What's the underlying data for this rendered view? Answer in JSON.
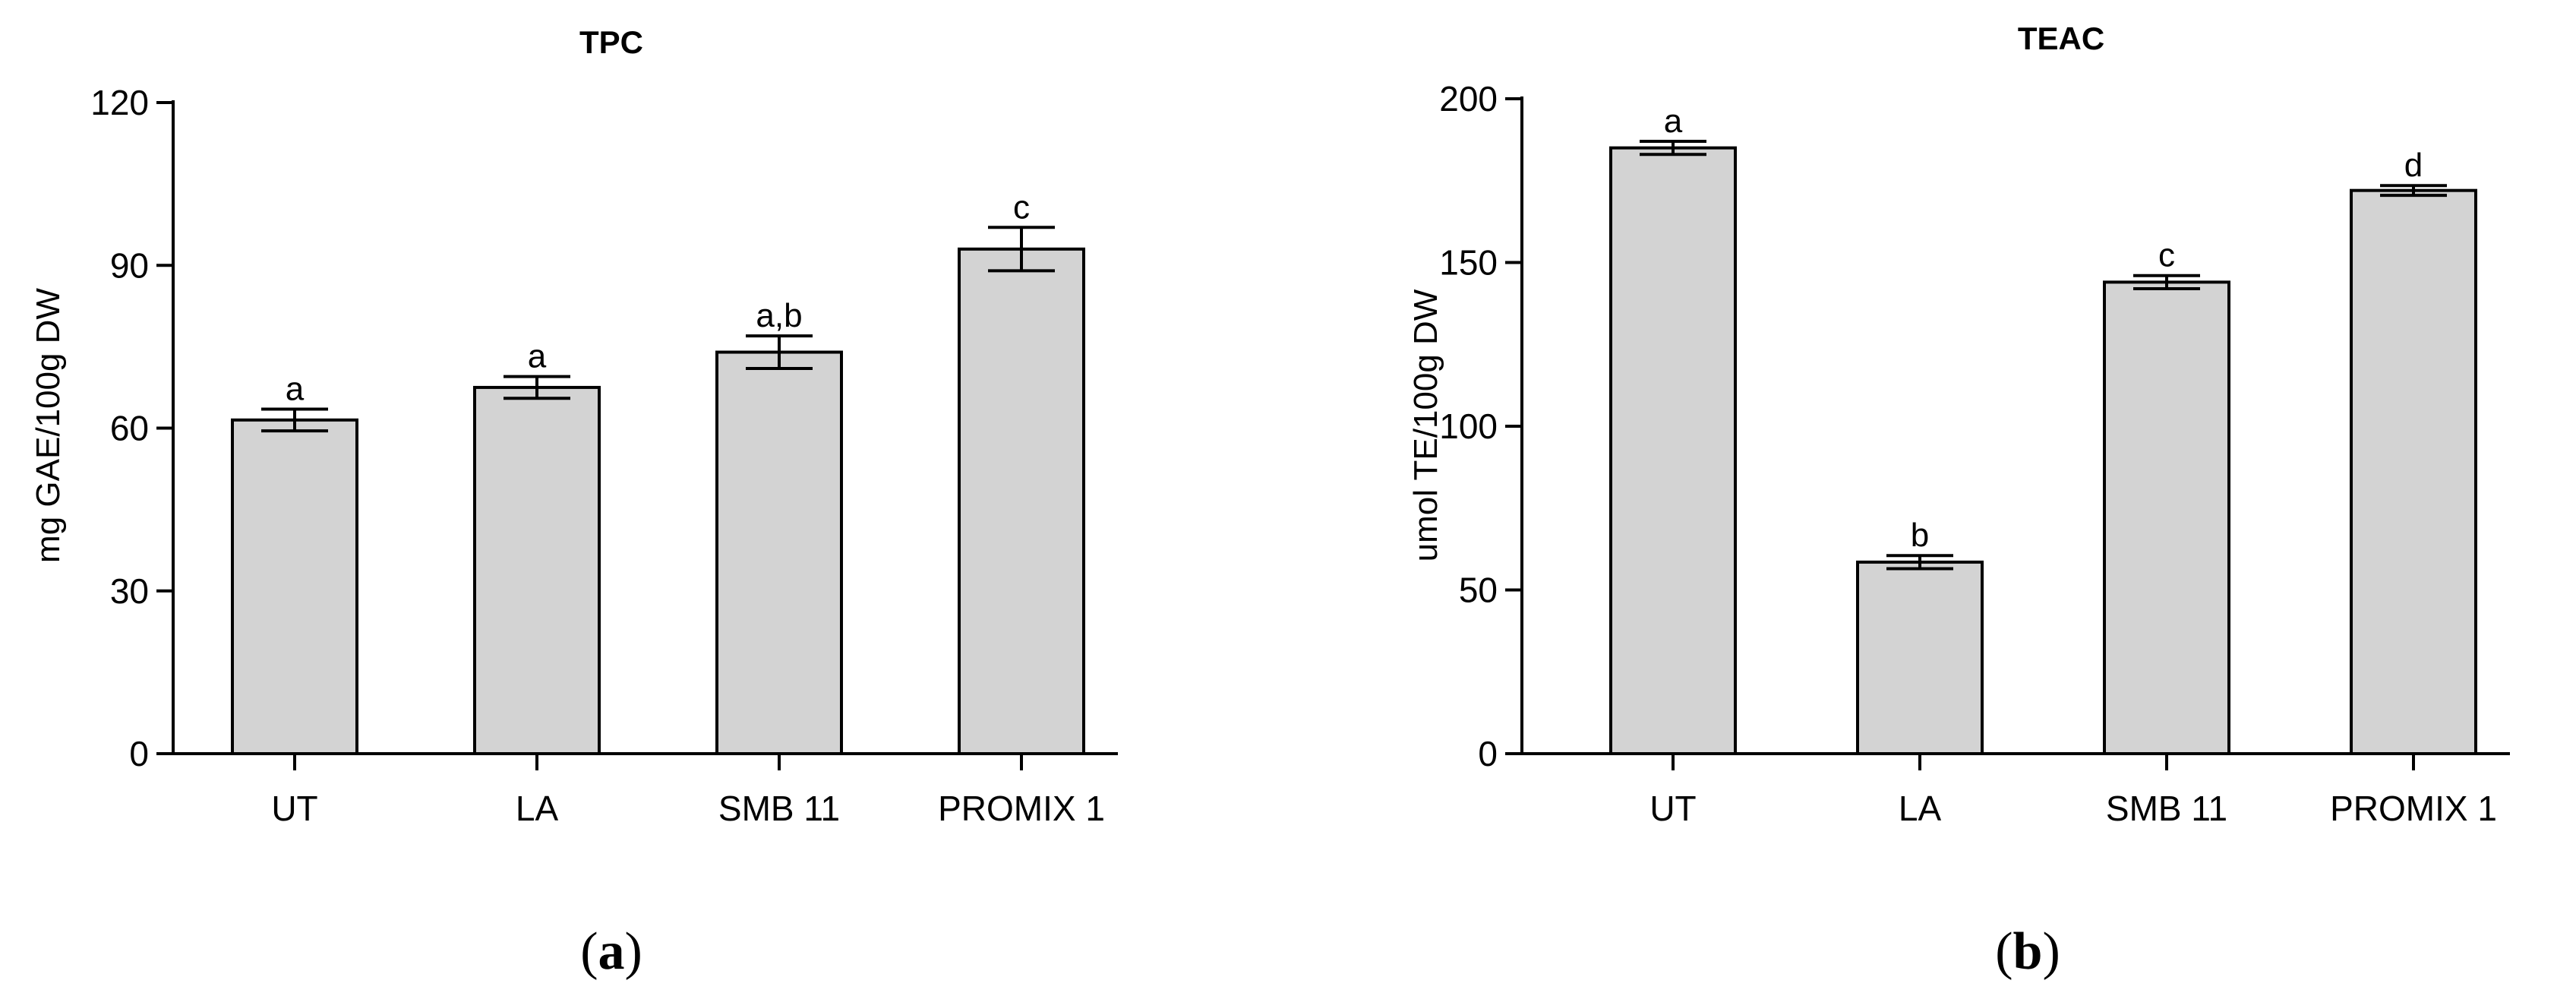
{
  "chart_data": [
    {
      "type": "bar",
      "title": "TPC",
      "ylabel": "mg GAE/100g DW",
      "xlabel": "",
      "categories": [
        "UT",
        "LA",
        "SMB 11",
        "PROMIX 1"
      ],
      "values": [
        61.5,
        67.5,
        74,
        93
      ],
      "errors": [
        2,
        2,
        3,
        4
      ],
      "significance": [
        "a",
        "a",
        "a,b",
        "c"
      ],
      "ylim": [
        0,
        120
      ],
      "yticks": [
        0,
        30,
        60,
        90,
        120
      ],
      "bar_color": "#d3d3d3",
      "panel_label": "a"
    },
    {
      "type": "bar",
      "title": "TEAC",
      "ylabel": "umol TE/100g DW",
      "xlabel": "",
      "categories": [
        "UT",
        "LA",
        "SMB 11",
        "PROMIX 1"
      ],
      "values": [
        185,
        58.5,
        144,
        172
      ],
      "errors": [
        2,
        2,
        2,
        1.5
      ],
      "significance": [
        "a",
        "b",
        "c",
        "d"
      ],
      "ylim": [
        0,
        200
      ],
      "yticks": [
        0,
        50,
        100,
        150,
        200
      ],
      "bar_color": "#d3d3d3",
      "panel_label": "b"
    }
  ]
}
